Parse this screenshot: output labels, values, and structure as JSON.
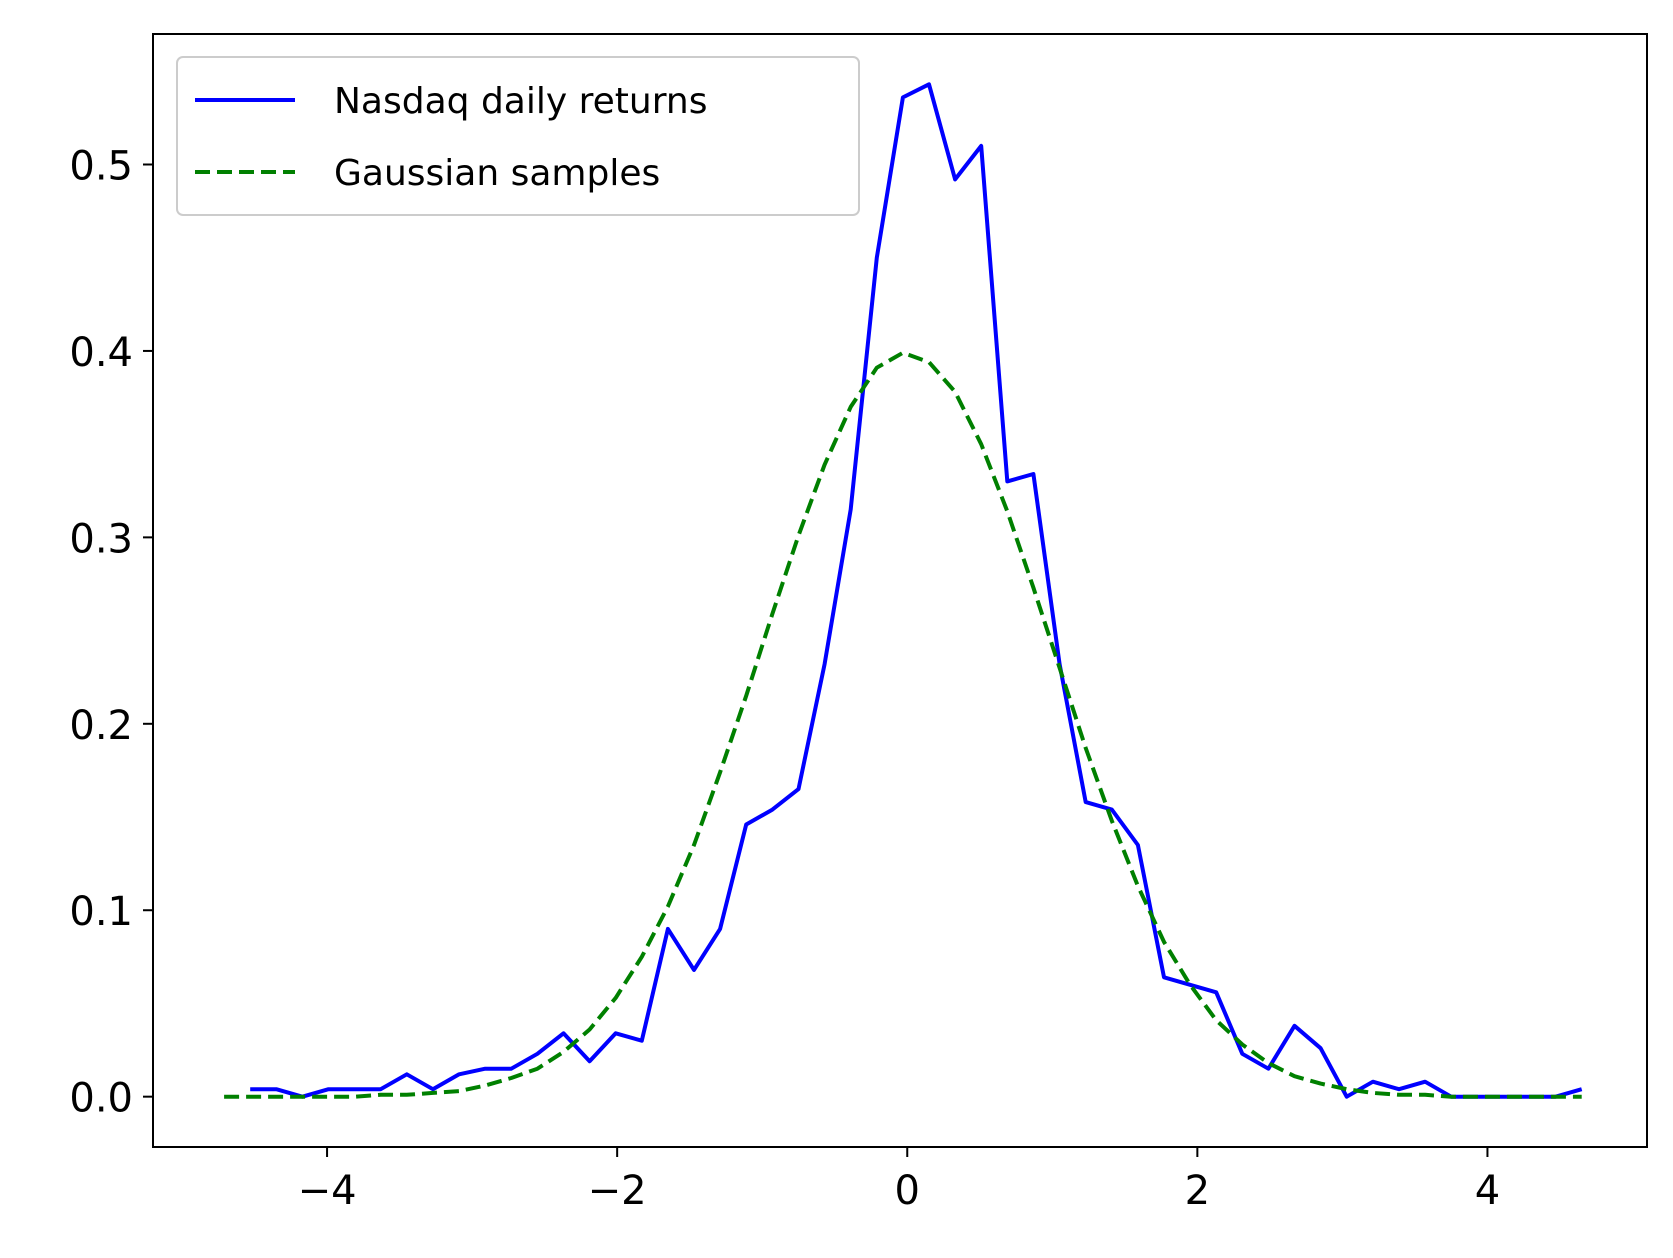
{
  "chart_data": {
    "type": "line",
    "title": "",
    "xlabel": "",
    "ylabel": "",
    "xlim": [
      -5.2,
      5.1
    ],
    "ylim": [
      -0.027,
      0.57
    ],
    "xticks": [
      -4,
      -2,
      0,
      2,
      4
    ],
    "xtick_labels": [
      "−4",
      "−2",
      "0",
      "2",
      "4"
    ],
    "yticks": [
      0.0,
      0.1,
      0.2,
      0.3,
      0.4,
      0.5
    ],
    "ytick_labels": [
      "0.0",
      "0.1",
      "0.2",
      "0.3",
      "0.4",
      "0.5"
    ],
    "grid": false,
    "legend_position": "top-left",
    "series": [
      {
        "name": "Nasdaq daily returns",
        "color": "#0000ff",
        "style": "solid",
        "x": [
          -4.53,
          -4.35,
          -4.17,
          -3.99,
          -3.81,
          -3.63,
          -3.45,
          -3.27,
          -3.09,
          -2.91,
          -2.73,
          -2.55,
          -2.37,
          -2.19,
          -2.01,
          -1.83,
          -1.65,
          -1.47,
          -1.29,
          -1.11,
          -0.93,
          -0.75,
          -0.57,
          -0.39,
          -0.21,
          -0.03,
          0.15,
          0.33,
          0.51,
          0.69,
          0.87,
          1.05,
          1.23,
          1.41,
          1.59,
          1.77,
          1.95,
          2.13,
          2.31,
          2.49,
          2.67,
          2.85,
          3.03,
          3.21,
          3.39,
          3.57,
          3.75,
          3.93,
          4.11,
          4.29,
          4.47,
          4.65
        ],
        "y": [
          0.004,
          0.004,
          0.0,
          0.004,
          0.004,
          0.004,
          0.012,
          0.004,
          0.012,
          0.015,
          0.015,
          0.023,
          0.034,
          0.019,
          0.034,
          0.03,
          0.09,
          0.068,
          0.09,
          0.146,
          0.154,
          0.165,
          0.232,
          0.315,
          0.45,
          0.536,
          0.543,
          0.492,
          0.51,
          0.33,
          0.334,
          0.232,
          0.158,
          0.154,
          0.135,
          0.064,
          0.06,
          0.056,
          0.023,
          0.015,
          0.038,
          0.026,
          0.0,
          0.008,
          0.004,
          0.008,
          0.0,
          0.0,
          0.0,
          0.0,
          0.0,
          0.004
        ]
      },
      {
        "name": "Gaussian samples",
        "color": "#008000",
        "style": "dashed",
        "x": [
          -4.71,
          -4.53,
          -4.35,
          -4.17,
          -3.99,
          -3.81,
          -3.63,
          -3.45,
          -3.27,
          -3.09,
          -2.91,
          -2.73,
          -2.55,
          -2.37,
          -2.19,
          -2.01,
          -1.83,
          -1.65,
          -1.47,
          -1.29,
          -1.11,
          -0.93,
          -0.75,
          -0.57,
          -0.39,
          -0.21,
          -0.03,
          0.15,
          0.33,
          0.51,
          0.69,
          0.87,
          1.05,
          1.23,
          1.41,
          1.59,
          1.77,
          1.95,
          2.13,
          2.31,
          2.49,
          2.67,
          2.85,
          3.03,
          3.21,
          3.39,
          3.57,
          3.75,
          3.93,
          4.11,
          4.29,
          4.47,
          4.65
        ],
        "y": [
          0.0,
          0.0,
          0.0,
          0.0,
          0.0,
          0.0,
          0.001,
          0.001,
          0.002,
          0.003,
          0.006,
          0.01,
          0.015,
          0.024,
          0.036,
          0.053,
          0.075,
          0.102,
          0.135,
          0.174,
          0.215,
          0.259,
          0.301,
          0.339,
          0.37,
          0.391,
          0.399,
          0.394,
          0.378,
          0.35,
          0.314,
          0.273,
          0.23,
          0.187,
          0.148,
          0.113,
          0.083,
          0.06,
          0.041,
          0.028,
          0.018,
          0.011,
          0.007,
          0.004,
          0.002,
          0.001,
          0.001,
          0.0,
          0.0,
          0.0,
          0.0,
          0.0,
          0.0
        ]
      }
    ]
  }
}
